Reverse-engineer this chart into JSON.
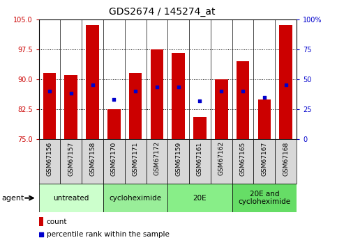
{
  "title": "GDS2674 / 145274_at",
  "samples": [
    "GSM67156",
    "GSM67157",
    "GSM67158",
    "GSM67170",
    "GSM67171",
    "GSM67172",
    "GSM67159",
    "GSM67161",
    "GSM67162",
    "GSM67165",
    "GSM67167",
    "GSM67168"
  ],
  "count_values": [
    91.5,
    91.0,
    103.5,
    82.5,
    91.5,
    97.5,
    96.5,
    80.5,
    90.0,
    94.5,
    85.0,
    103.5
  ],
  "percentile_values": [
    87.0,
    86.5,
    88.5,
    85.0,
    87.0,
    88.0,
    88.0,
    84.5,
    87.0,
    87.0,
    85.5,
    88.5
  ],
  "y_min": 75,
  "y_max": 105,
  "y_ticks": [
    75,
    82.5,
    90,
    97.5,
    105
  ],
  "y_right_ticks": [
    0,
    25,
    50,
    75,
    100
  ],
  "bar_color": "#cc0000",
  "dot_color": "#0000cc",
  "groups": [
    {
      "label": "untreated",
      "start": 0,
      "end": 3,
      "color": "#ccffcc"
    },
    {
      "label": "cycloheximide",
      "start": 3,
      "end": 6,
      "color": "#99ee99"
    },
    {
      "label": "20E",
      "start": 6,
      "end": 9,
      "color": "#88ee88"
    },
    {
      "label": "20E and\ncycloheximide",
      "start": 9,
      "end": 12,
      "color": "#66dd66"
    }
  ],
  "agent_label": "agent",
  "legend_count_label": "count",
  "legend_pct_label": "percentile rank within the sample",
  "ylabel_left_color": "#cc0000",
  "ylabel_right_color": "#0000cc",
  "sample_bg_color": "#d8d8d8",
  "bar_width": 0.6,
  "title_fontsize": 10,
  "tick_fontsize": 7,
  "sample_fontsize": 6.5,
  "group_fontsize": 7.5,
  "legend_fontsize": 7.5
}
